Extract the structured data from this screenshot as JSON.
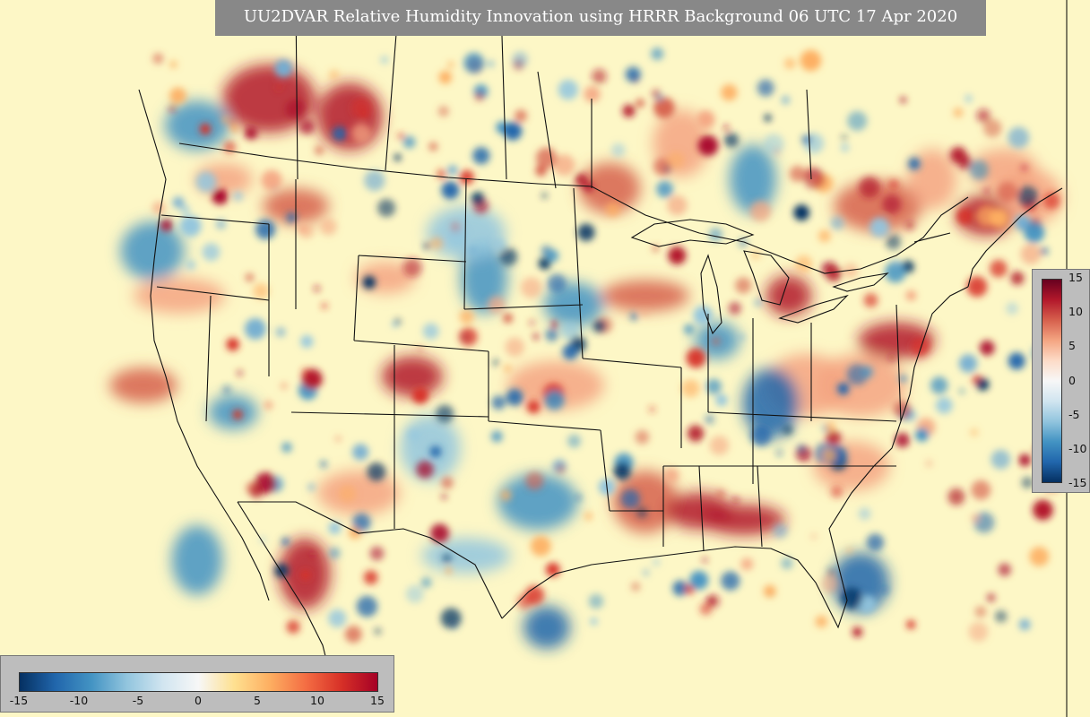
{
  "title": "UU2DVAR Relative Humidity Innovation using HRRR Background 06 UTC 17 Apr 2020",
  "colors": {
    "background_field": "#fdf7c6",
    "positive_strong": "#b2182b",
    "negative_strong": "#2166ac",
    "panel_gray": "#888888",
    "colorbar_panel": "#bdbdbd"
  },
  "colorbar_vertical": {
    "ticks": [
      "15",
      "10",
      "5",
      "0",
      "-5",
      "-10",
      "-15"
    ]
  },
  "colorbar_horizontal": {
    "ticks": [
      "-15",
      "-10",
      "-5",
      "0",
      "5",
      "10",
      "15"
    ]
  },
  "map_features": [
    "us-state-borders",
    "coastlines",
    "lakes",
    "canada-provinces",
    "mexico-borders"
  ]
}
